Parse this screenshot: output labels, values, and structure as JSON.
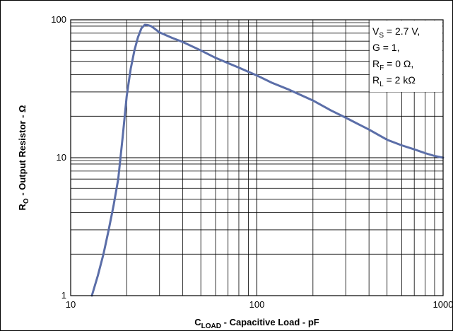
{
  "chart_data": {
    "type": "line",
    "title": "",
    "xlabel": {
      "main": "C",
      "sub": "LOAD",
      "rest": " - Capacitive Load - pF"
    },
    "ylabel": {
      "main": "R",
      "sub": "O",
      "rest": " - Output Resistor - Ω"
    },
    "x_scale": "log",
    "y_scale": "log",
    "xlim": [
      10,
      1000
    ],
    "ylim": [
      1,
      100
    ],
    "grid": true,
    "x_ticks": [
      {
        "v": 10,
        "label": "10"
      },
      {
        "v": 100,
        "label": "100"
      },
      {
        "v": 1000,
        "label": "1000"
      }
    ],
    "y_ticks": [
      {
        "v": 1,
        "label": "1"
      },
      {
        "v": 10,
        "label": "10"
      },
      {
        "v": 100,
        "label": "100"
      }
    ],
    "series": [
      {
        "name": "",
        "color": "#5b6ea8",
        "x": [
          13,
          14,
          15,
          16,
          17,
          18,
          19,
          20,
          21,
          22,
          23,
          24,
          25,
          26,
          27,
          28,
          30,
          35,
          40,
          50,
          60,
          70,
          80,
          90,
          100,
          120,
          150,
          200,
          250,
          300,
          400,
          500,
          600,
          700,
          800,
          900,
          1000
        ],
        "y": [
          1.0,
          1.4,
          2.0,
          3.0,
          4.5,
          7.0,
          14.0,
          28.0,
          44.0,
          60.0,
          75.0,
          87.0,
          92.0,
          91.5,
          90.0,
          87.0,
          81.0,
          74.0,
          69.0,
          60.0,
          53.0,
          48.5,
          45.0,
          42.0,
          39.5,
          35.0,
          31.0,
          26.0,
          22.0,
          19.5,
          16.0,
          13.5,
          12.3,
          11.5,
          10.8,
          10.3,
          10.0
        ]
      }
    ],
    "annotation": {
      "lines": [
        {
          "main": "V",
          "sub": "S",
          "rest": " = 2.7 V,"
        },
        {
          "main": "G = 1,",
          "sub": "",
          "rest": ""
        },
        {
          "main": "R",
          "sub": "F",
          "rest": " = 0 Ω,"
        },
        {
          "main": "R",
          "sub": "L",
          "rest": " = 2 kΩ"
        }
      ],
      "placement": "top-right"
    }
  }
}
